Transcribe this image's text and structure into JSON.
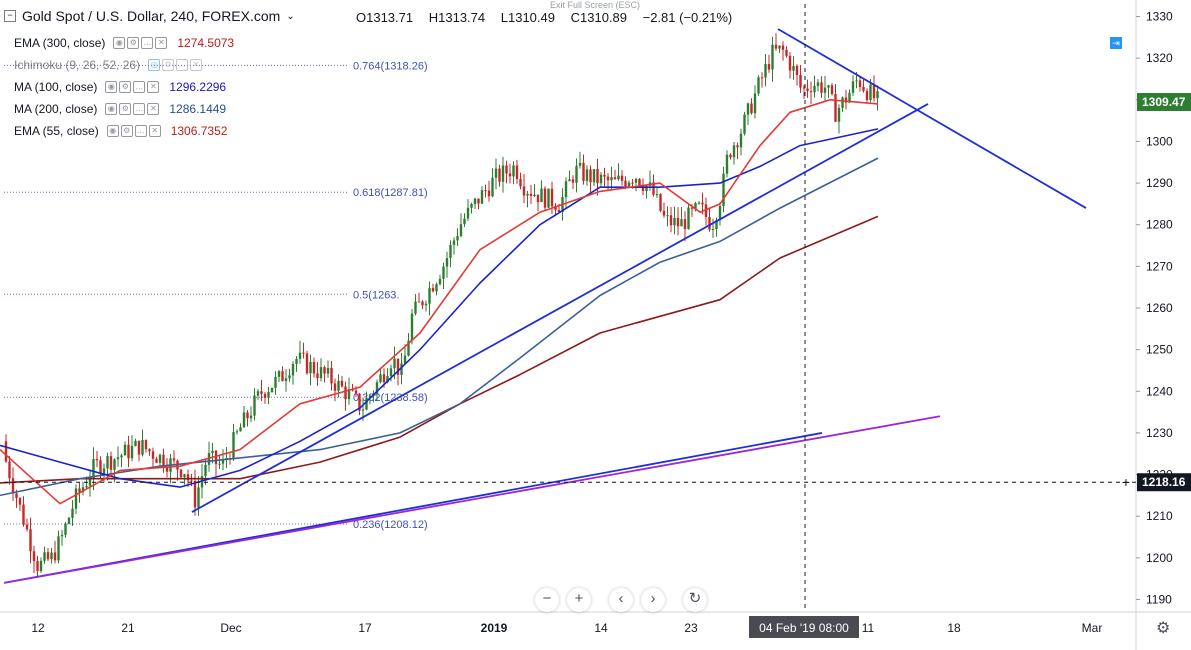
{
  "header": {
    "symbol_title": "Gold Spot / U.S. Dollar, 240, FOREX.com",
    "open": "O1313.71",
    "high": "H1313.74",
    "low": "L1310.49",
    "close": "C1310.89",
    "change": "−2.81 (−0.21%)",
    "exit_fullscreen": "Exit Full Screen (ESC)"
  },
  "indicators": [
    {
      "name": "EMA (300, close)",
      "value": "1274.5073",
      "color": "#b71c1c"
    },
    {
      "name": "Ichimoku (9, 26, 52, 26)",
      "value": "",
      "color": "#2196f3"
    },
    {
      "name": "MA (100, close)",
      "value": "1296.2296",
      "color": "#1a1aa8"
    },
    {
      "name": "MA (200, close)",
      "value": "1286.1449",
      "color": "#2b4f8c"
    },
    {
      "name": "EMA (55, close)",
      "value": "1306.7352",
      "color": "#b71c1c"
    }
  ],
  "colors": {
    "up_candle": "#2e7d32",
    "down_candle": "#c62828",
    "ema55": "#e53935",
    "ma100": "#1a23c8",
    "ma200": "#3c5f9a",
    "ema300": "#8b1a1a",
    "trendline": "#1f2fd6",
    "purple_line": "#9c27d8",
    "fib": "#3f51b5"
  },
  "chart_data": {
    "type": "candlestick",
    "title": "Gold Spot / U.S. Dollar, 240, FOREX.com",
    "ylim": [
      1187,
      1333
    ],
    "y_ticks": [
      1190,
      1200,
      1210,
      1220,
      1230,
      1240,
      1250,
      1260,
      1270,
      1280,
      1290,
      1300,
      1310,
      1320,
      1330
    ],
    "x_ticks": [
      {
        "label": "12",
        "bold": false
      },
      {
        "label": "21",
        "bold": false
      },
      {
        "label": "Dec",
        "bold": false
      },
      {
        "label": "17",
        "bold": false
      },
      {
        "label": "2019",
        "bold": true
      },
      {
        "label": "14",
        "bold": false
      },
      {
        "label": "23",
        "bold": false
      },
      {
        "label": "11",
        "bold": false
      },
      {
        "label": "18",
        "bold": false
      },
      {
        "label": "Mar",
        "bold": false
      }
    ],
    "last_price": {
      "label": "1309.47",
      "value": 1309.47
    },
    "crosshair": {
      "price_label": "1218.16",
      "price": 1218.16,
      "time_label": "04 Feb '19   08:00"
    },
    "fib_levels": [
      {
        "label": "0.764(1318.26)",
        "price": 1318.26
      },
      {
        "label": "0.618(1287.81)",
        "price": 1287.81
      },
      {
        "label": "0.5(1263.",
        "price": 1263.3
      },
      {
        "label": "0.382(1238.58)",
        "price": 1238.58
      },
      {
        "label": "0.236(1208.12)",
        "price": 1208.12
      }
    ],
    "price_anchors": [
      [
        0,
        1228
      ],
      [
        20,
        1212
      ],
      [
        38,
        1198
      ],
      [
        52,
        1200
      ],
      [
        62,
        1205
      ],
      [
        75,
        1214
      ],
      [
        95,
        1222
      ],
      [
        115,
        1224
      ],
      [
        140,
        1227
      ],
      [
        168,
        1223
      ],
      [
        185,
        1221
      ],
      [
        195,
        1214
      ],
      [
        207,
        1224
      ],
      [
        222,
        1222
      ],
      [
        240,
        1231
      ],
      [
        262,
        1240
      ],
      [
        280,
        1243
      ],
      [
        295,
        1248
      ],
      [
        310,
        1246
      ],
      [
        330,
        1243
      ],
      [
        350,
        1239
      ],
      [
        362,
        1236
      ],
      [
        375,
        1241
      ],
      [
        392,
        1248
      ],
      [
        402,
        1244
      ],
      [
        412,
        1258
      ],
      [
        428,
        1264
      ],
      [
        445,
        1271
      ],
      [
        460,
        1280
      ],
      [
        478,
        1286
      ],
      [
        495,
        1291
      ],
      [
        515,
        1294
      ],
      [
        525,
        1289
      ],
      [
        540,
        1287
      ],
      [
        560,
        1285
      ],
      [
        575,
        1293
      ],
      [
        595,
        1291
      ],
      [
        615,
        1290
      ],
      [
        635,
        1292
      ],
      [
        652,
        1288
      ],
      [
        665,
        1281
      ],
      [
        680,
        1280
      ],
      [
        700,
        1284
      ],
      [
        712,
        1280
      ],
      [
        722,
        1288
      ],
      [
        728,
        1297
      ],
      [
        742,
        1303
      ],
      [
        758,
        1313
      ],
      [
        772,
        1321
      ],
      [
        782,
        1322
      ],
      [
        792,
        1318
      ],
      [
        802,
        1312
      ],
      [
        812,
        1314
      ],
      [
        826,
        1313
      ],
      [
        835,
        1307
      ],
      [
        845,
        1310
      ],
      [
        858,
        1315
      ],
      [
        868,
        1312
      ],
      [
        878,
        1309.5
      ]
    ],
    "ema55": [
      [
        0,
        1226
      ],
      [
        60,
        1213
      ],
      [
        120,
        1221
      ],
      [
        180,
        1222
      ],
      [
        240,
        1226
      ],
      [
        300,
        1237
      ],
      [
        360,
        1241
      ],
      [
        420,
        1254
      ],
      [
        480,
        1274
      ],
      [
        540,
        1283
      ],
      [
        600,
        1288
      ],
      [
        660,
        1290
      ],
      [
        700,
        1283
      ],
      [
        720,
        1285
      ],
      [
        760,
        1299
      ],
      [
        790,
        1307
      ],
      [
        830,
        1310
      ],
      [
        878,
        1309
      ]
    ],
    "ma100": [
      [
        0,
        1227
      ],
      [
        60,
        1223
      ],
      [
        120,
        1219
      ],
      [
        180,
        1217
      ],
      [
        240,
        1221
      ],
      [
        300,
        1228
      ],
      [
        360,
        1236
      ],
      [
        420,
        1250
      ],
      [
        480,
        1266
      ],
      [
        540,
        1280
      ],
      [
        600,
        1289
      ],
      [
        660,
        1289
      ],
      [
        720,
        1290
      ],
      [
        760,
        1294
      ],
      [
        800,
        1299
      ],
      [
        878,
        1303
      ]
    ],
    "ma200": [
      [
        0,
        1215
      ],
      [
        80,
        1219
      ],
      [
        160,
        1222
      ],
      [
        240,
        1224
      ],
      [
        320,
        1226
      ],
      [
        400,
        1230
      ],
      [
        460,
        1237
      ],
      [
        520,
        1248
      ],
      [
        600,
        1263
      ],
      [
        660,
        1271
      ],
      [
        720,
        1276
      ],
      [
        780,
        1284
      ],
      [
        878,
        1296
      ]
    ],
    "ema300": [
      [
        0,
        1218
      ],
      [
        80,
        1219
      ],
      [
        160,
        1219
      ],
      [
        240,
        1219
      ],
      [
        320,
        1223
      ],
      [
        400,
        1229
      ],
      [
        460,
        1237
      ],
      [
        520,
        1244
      ],
      [
        600,
        1254
      ],
      [
        660,
        1258
      ],
      [
        720,
        1262
      ],
      [
        780,
        1272
      ],
      [
        878,
        1282
      ]
    ],
    "trendlines": [
      {
        "name": "rising-support",
        "points": [
          [
            192,
            1211
          ],
          [
            928,
            1309
          ]
        ],
        "color": "#1f2fd6"
      },
      {
        "name": "falling-resistance",
        "points": [
          [
            778,
            1327
          ],
          [
            1086,
            1284
          ]
        ],
        "color": "#1f2fd6"
      },
      {
        "name": "long-support-blue",
        "points": [
          [
            4,
            1194
          ],
          [
            822,
            1230
          ]
        ],
        "color": "#1f2fd6"
      },
      {
        "name": "long-support-purple",
        "points": [
          [
            4,
            1194
          ],
          [
            940,
            1234
          ]
        ],
        "color": "#9c27d8"
      }
    ]
  }
}
